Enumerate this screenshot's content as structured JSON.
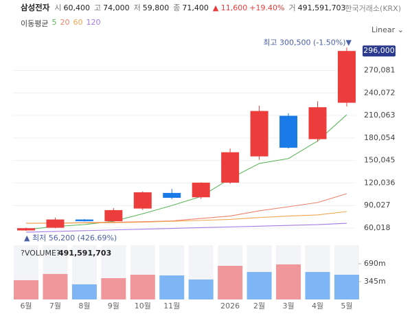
{
  "chart_data": {
    "type": "candlestick",
    "header": {
      "name": "삼성전자",
      "fields": [
        {
          "label": "시",
          "value": "60,400"
        },
        {
          "label": "고",
          "value": "74,000"
        },
        {
          "label": "저",
          "value": "59,800"
        },
        {
          "label": "종",
          "value": "71,400"
        }
      ],
      "change": "▲ 11,600",
      "change_pct": "+19.40%",
      "volume_label": "거",
      "volume": "491,591,703",
      "exchange": "한국거래소(KRX)"
    },
    "ma_title": "이동평균",
    "moving_averages": [
      {
        "name": "5",
        "color": "#5cb85c",
        "values": [
          58000,
          62000,
          64600,
          69000,
          79000,
          90000,
          102000,
          126000,
          146000,
          152600,
          176000,
          211000
        ]
      },
      {
        "name": "20",
        "color": "#f0826e",
        "values": [
          66400,
          66600,
          67200,
          67800,
          68500,
          69500,
          72800,
          76000,
          83000,
          88400,
          94000,
          105800
        ]
      },
      {
        "name": "60",
        "color": "#f0a650",
        "values": [
          66400,
          66500,
          66800,
          67200,
          67800,
          69000,
          70200,
          71500,
          74000,
          76000,
          77500,
          82000
        ]
      },
      {
        "name": "120",
        "color": "#a57be0",
        "values": [
          54500,
          55500,
          56500,
          57500,
          58500,
          59500,
          60500,
          61500,
          62500,
          63500,
          64500,
          66400
        ]
      }
    ],
    "scale_label": "Linear",
    "categories": [
      "6월",
      "7월",
      "8월",
      "9월",
      "10월",
      "11월",
      null,
      "2026",
      "2월",
      "3월",
      "4월",
      "5월"
    ],
    "open": [
      56800,
      60400,
      71400,
      69100,
      86000,
      106800,
      101000,
      120500,
      155500,
      209600,
      178500,
      227000
    ],
    "high": [
      60600,
      74000,
      71900,
      86600,
      109000,
      112200,
      121000,
      166000,
      223000,
      213000,
      229000,
      300500
    ],
    "low": [
      56200,
      59800,
      68700,
      68900,
      84000,
      98500,
      99000,
      119000,
      151000,
      166000,
      175000,
      222000
    ],
    "close": [
      59800,
      71400,
      69100,
      83900,
      107600,
      100300,
      120500,
      161000,
      216000,
      167000,
      221000,
      296000
    ],
    "up_color": "#ec3c3c",
    "down_color": "#1a7ae8",
    "ylim": [
      52700,
      309000
    ],
    "yticks": [
      {
        "value": 60018,
        "label": "60,018"
      },
      {
        "value": 90027,
        "label": "90,027"
      },
      {
        "value": 120036,
        "label": "120,036"
      },
      {
        "value": 150045,
        "label": "150,045"
      },
      {
        "value": 180054,
        "label": "180,054"
      },
      {
        "value": 210063,
        "label": "210,063"
      },
      {
        "value": 240072,
        "label": "240,072"
      },
      {
        "value": 270081,
        "label": "270,081"
      }
    ],
    "grid": true,
    "price_tag": {
      "label": "296,000",
      "color": "#2b3a8f"
    },
    "annotations": {
      "high": "최고 300,500 (-1.50%)▼",
      "low": "▲ 최저 56,200 (426.69%)"
    },
    "volume": {
      "title": "?VOLUME?",
      "value_label": "491,591,703",
      "values": [
        372000000,
        491591703,
        292000000,
        411000000,
        478000000,
        464000000,
        385000000,
        650000000,
        531000000,
        677000000,
        531000000,
        478000000
      ],
      "up_color": "#f0979c",
      "down_color": "#7db5f5",
      "ylim": [
        0,
        1048000000
      ],
      "yticks": [
        {
          "value": 345000000,
          "label": "345m"
        },
        {
          "value": 690000000,
          "label": "690m"
        }
      ]
    }
  }
}
